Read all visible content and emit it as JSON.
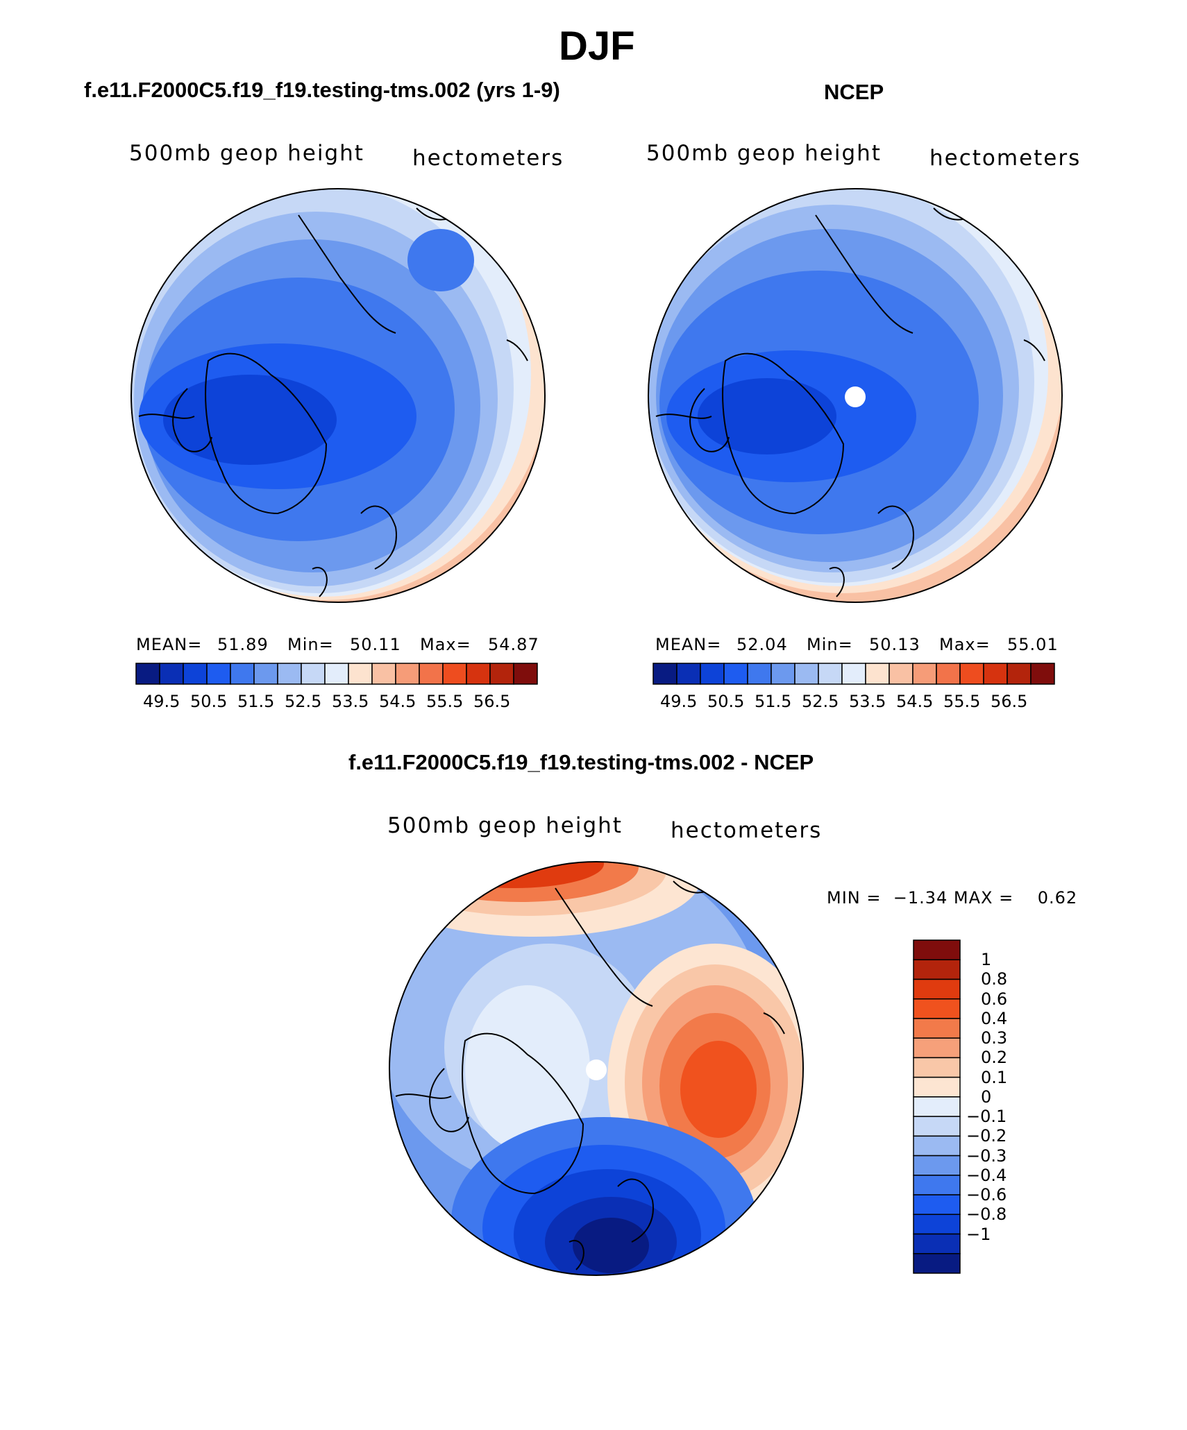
{
  "figure_title": "DJF",
  "panels": {
    "model": {
      "subtitle": "f.e11.F2000C5.f19_f19.testing-tms.002 (yrs 1-9)",
      "left_label": "500mb geop height",
      "right_label": "hectometers",
      "stats": {
        "mean_label": "MEAN=",
        "mean": "51.89",
        "min_label": "Min=",
        "min": "50.11",
        "max_label": "Max=",
        "max": "54.87"
      }
    },
    "obs": {
      "subtitle": "NCEP",
      "left_label": "500mb geop height",
      "right_label": "hectometers",
      "stats": {
        "mean_label": "MEAN=",
        "mean": "52.04",
        "min_label": "Min=",
        "min": "50.13",
        "max_label": "Max=",
        "max": "55.01"
      }
    },
    "diff": {
      "subtitle": "f.e11.F2000C5.f19_f19.testing-tms.002 - NCEP",
      "left_label": "500mb geop height",
      "right_label": "hectometers",
      "stats_text": "MIN =  −1.34 MAX =    0.62"
    }
  },
  "colorbars": {
    "abs": {
      "colors": [
        "#081b82",
        "#0a2fb5",
        "#0d43d8",
        "#1e5cf0",
        "#3f78ee",
        "#6c99ee",
        "#9bbaf2",
        "#c6d8f6",
        "#e3edfb",
        "#fde3cf",
        "#f9c1a4",
        "#f69c78",
        "#f2734a",
        "#ee4d1f",
        "#d6330f",
        "#b3240c",
        "#7f0d0c"
      ],
      "tick_labels": [
        "49.5",
        "50.5",
        "51.5",
        "52.5",
        "53.5",
        "54.5",
        "55.5",
        "56.5"
      ]
    },
    "diff": {
      "colors": [
        "#7f0d0c",
        "#b3240c",
        "#e03b0f",
        "#f0521e",
        "#f27a4a",
        "#f6a07a",
        "#f9c7a8",
        "#fde5d2",
        "#e3edfb",
        "#c6d8f6",
        "#9bbaf2",
        "#6c99ee",
        "#3f78ee",
        "#1e5cf0",
        "#0d43d8",
        "#0a2fb5",
        "#081b82"
      ],
      "tick_labels": [
        "1",
        "0.8",
        "0.6",
        "0.4",
        "0.3",
        "0.2",
        "0.1",
        "0",
        "−0.1",
        "−0.2",
        "−0.3",
        "−0.4",
        "−0.6",
        "−0.8",
        "−1"
      ]
    }
  },
  "map_projection": "North polar stereographic",
  "colors": {
    "background": "#ffffff",
    "text": "#000000",
    "outline": "#000000",
    "pole_mask": "#ffffff"
  }
}
